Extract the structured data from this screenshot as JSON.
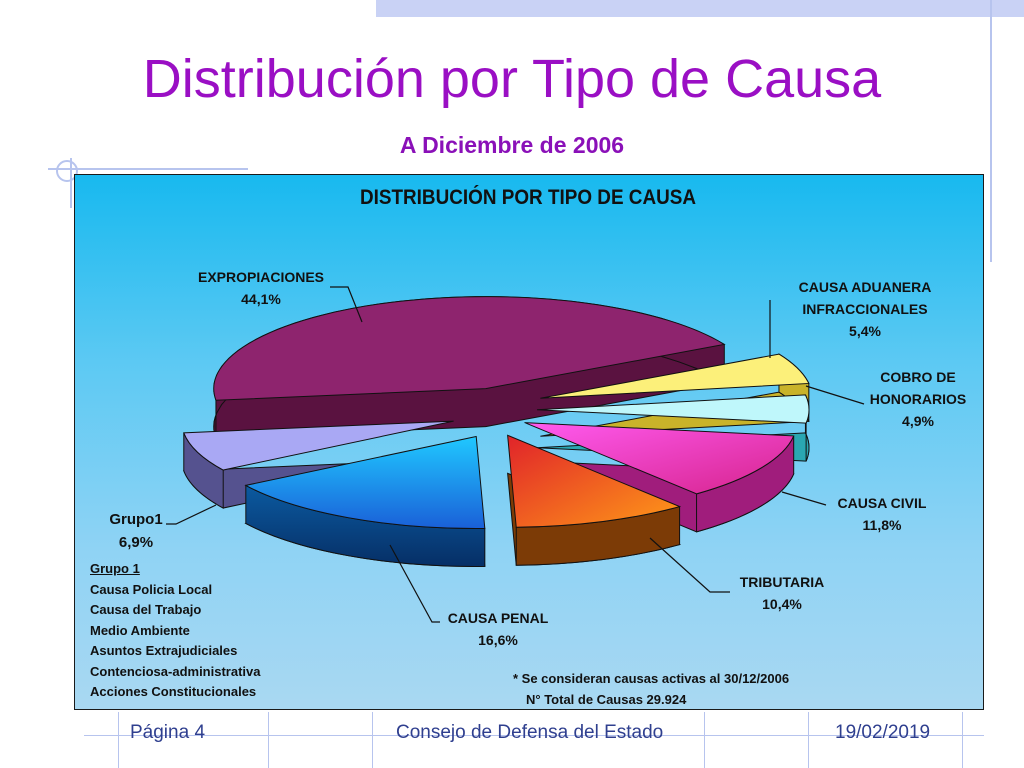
{
  "slide": {
    "title": "Distribución por Tipo de Causa",
    "subtitle": "A Diciembre de 2006"
  },
  "chart_data": {
    "type": "pie",
    "title": "DISTRIBUCIÓN POR TIPO DE CAUSA",
    "slices": [
      {
        "label": "EXPROPIACIONES",
        "value": 44.1,
        "value_label": "44,1%",
        "color": "#8e246e"
      },
      {
        "label": "CAUSA ADUANERA INFRACCIONALES",
        "value": 5.4,
        "value_label": "5,4%",
        "color": "#fcf07a"
      },
      {
        "label": "COBRO DE HONORARIOS",
        "value": 4.9,
        "value_label": "4,9%",
        "color": "#bff7fb"
      },
      {
        "label": "CAUSA CIVIL",
        "value": 11.8,
        "value_label": "11,8%",
        "color": "#f54be0"
      },
      {
        "label": "TRIBUTARIA",
        "value": 10.4,
        "value_label": "10,4%",
        "color": "#f56a18"
      },
      {
        "label": "CAUSA PENAL",
        "value": 16.6,
        "value_label": "16,6%",
        "color": "#1f8ff0"
      },
      {
        "label": "Grupo1",
        "value": 6.9,
        "value_label": "6,9%",
        "color": "#a9a8f4"
      }
    ],
    "labels": {
      "expropiaciones": {
        "name": "EXPROPIACIONES",
        "pct": "44,1%"
      },
      "aduanera": {
        "line1": "CAUSA ADUANERA",
        "line2": "INFRACCIONALES",
        "pct": "5,4%"
      },
      "honorarios": {
        "line1": "COBRO DE",
        "line2": "HONORARIOS",
        "pct": "4,9%"
      },
      "civil": {
        "name": "CAUSA CIVIL",
        "pct": "11,8%"
      },
      "tributaria": {
        "name": "TRIBUTARIA",
        "pct": "10,4%"
      },
      "penal": {
        "name": "CAUSA PENAL",
        "pct": "16,6%"
      },
      "grupo1": {
        "name": "Grupo1",
        "pct": "6,9%"
      }
    },
    "legend_group1": {
      "heading": "Grupo 1",
      "items": [
        "Causa Policia Local",
        "Causa del Trabajo",
        "Medio Ambiente",
        "Asuntos Extrajudiciales",
        "Contenciosa-administrativa",
        "Acciones Constitucionales"
      ]
    },
    "notes": {
      "line1": "* Se consideran causas activas al 30/12/2006",
      "line2": "N° Total de Causas 29.924"
    }
  },
  "footer": {
    "page": "Página 4",
    "org": "Consejo de Defensa del Estado",
    "date": "19/02/2019"
  },
  "colors": {
    "title": "#9a0fc4",
    "footer_text": "#2f3f8f",
    "decor_lines": "#b7c4ee"
  }
}
